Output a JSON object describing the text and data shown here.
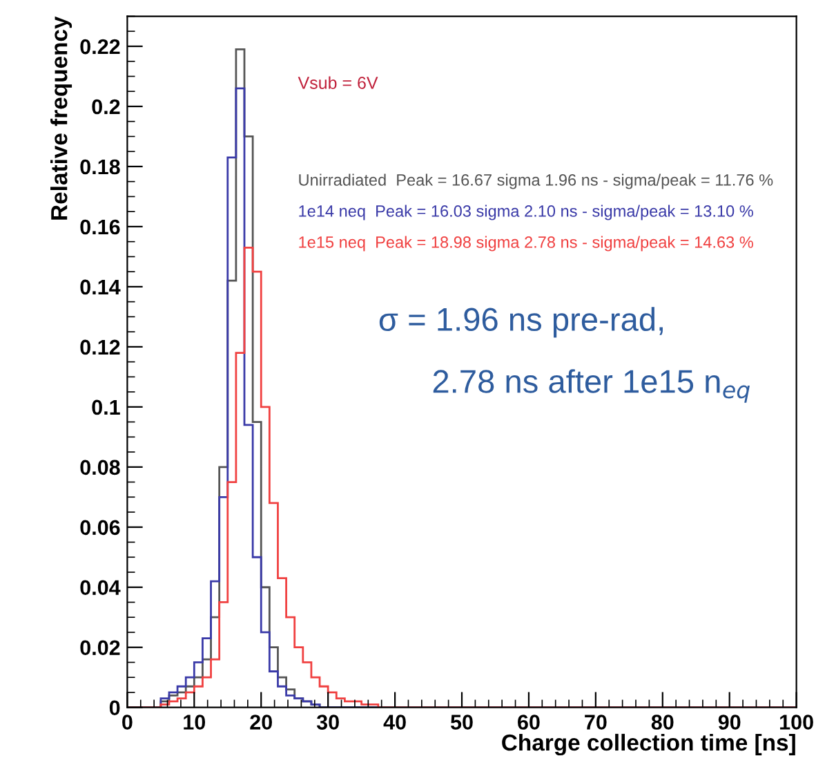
{
  "chart_data": {
    "type": "histogram",
    "xlabel": "Charge collection time [ns]",
    "ylabel": "Relative frequency",
    "bins": [
      0,
      1.25,
      2.5,
      3.75,
      5,
      6.25,
      7.5,
      8.75,
      10,
      11.25,
      12.5,
      13.75,
      15,
      16.25,
      17.5,
      18.75,
      20,
      21.25,
      22.5,
      23.75,
      25,
      26.25,
      27.5,
      28.75,
      30,
      31.25,
      32.5,
      33.75,
      35,
      36.25,
      37.5,
      38.75,
      40,
      100
    ],
    "series": [
      {
        "name": "Unirradiated  Peak = 16.67 sigma 1.96 ns - sigma/peak = 11.76 %",
        "color": "#555555",
        "values": [
          0,
          0,
          0,
          0,
          0.002,
          0.004,
          0.005,
          0.007,
          0.01,
          0.016,
          0.03,
          0.08,
          0.142,
          0.219,
          0.19,
          0.095,
          0.04,
          0.02,
          0.01,
          0.006,
          0.003,
          0.002,
          0.001,
          0,
          0,
          0,
          0,
          0,
          0,
          0,
          0,
          0,
          0
        ]
      },
      {
        "name": "1e14 neq  Peak = 16.03 sigma 2.10 ns - sigma/peak = 13.10 %",
        "color": "#3a3aa8",
        "values": [
          0,
          0,
          0,
          0,
          0.003,
          0.005,
          0.007,
          0.01,
          0.015,
          0.023,
          0.042,
          0.07,
          0.183,
          0.206,
          0.094,
          0.05,
          0.025,
          0.012,
          0.007,
          0.004,
          0.003,
          0.002,
          0.001,
          0,
          0,
          0,
          0,
          0,
          0,
          0,
          0,
          0,
          0
        ]
      },
      {
        "name": "1e15 neq  Peak = 18.98 sigma 2.78 ns - sigma/peak = 14.63 %",
        "color": "#f04040",
        "values": [
          0,
          0,
          0,
          0,
          0.001,
          0.002,
          0.003,
          0.005,
          0.007,
          0.01,
          0.016,
          0.035,
          0.075,
          0.118,
          0.153,
          0.145,
          0.1,
          0.068,
          0.043,
          0.03,
          0.02,
          0.015,
          0.01,
          0.007,
          0.005,
          0.003,
          0.002,
          0.002,
          0.001,
          0.001,
          0,
          0,
          0
        ]
      }
    ],
    "xlim": [
      0,
      100
    ],
    "xticks": [
      0,
      10,
      20,
      30,
      40,
      50,
      60,
      70,
      80,
      90,
      100
    ],
    "ylim": [
      0,
      0.23
    ],
    "yticks": [
      0,
      0.02,
      0.04,
      0.06,
      0.08,
      0.1,
      0.12,
      0.14,
      0.16,
      0.18,
      0.2,
      0.22
    ],
    "annotations": [
      "Vsub = 6V",
      "σ = 1.96 ns pre-rad,",
      "2.78 ns after 1e15 n$_{eq}$"
    ],
    "grid": false,
    "legend": false
  }
}
